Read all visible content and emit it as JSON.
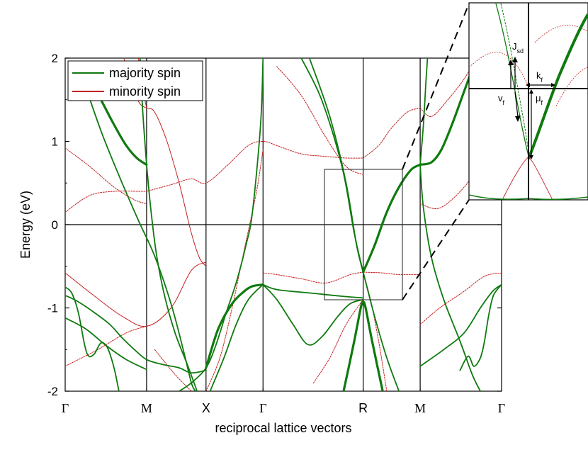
{
  "chart_data": {
    "type": "line",
    "title": "",
    "xlabel": "reciprocal lattice vectors",
    "ylabel": "Energy (eV)",
    "ylim": [
      -2,
      2
    ],
    "yticks": [
      "-2",
      "-1",
      "0",
      "1",
      "2"
    ],
    "kpoints": [
      {
        "label": "Γ",
        "pos": 0
      },
      {
        "label": "M",
        "pos": 1
      },
      {
        "label": "X",
        "pos": 1.73
      },
      {
        "label": "Γ",
        "pos": 2.43
      },
      {
        "label": "R",
        "pos": 3.66
      },
      {
        "label": "M",
        "pos": 4.36
      },
      {
        "label": "Γ",
        "pos": 5.36
      }
    ],
    "grid": false,
    "legend_position": "top-left",
    "series": [
      {
        "name": "majority spin",
        "color": "#0f7a0f",
        "bands": [
          [
            [
              0.0,
              -0.75
            ],
            [
              0.08,
              -0.82
            ],
            [
              0.16,
              -1.05
            ],
            [
              0.24,
              -1.45
            ],
            [
              0.29,
              -1.58
            ],
            [
              0.36,
              -1.55
            ],
            [
              0.44,
              -1.42
            ],
            [
              0.52,
              -1.48
            ],
            [
              0.6,
              -1.72
            ],
            [
              0.66,
              -2.0
            ]
          ],
          [
            [
              0.0,
              -0.85
            ],
            [
              0.15,
              -0.92
            ],
            [
              0.35,
              -1.05
            ],
            [
              0.55,
              -1.2
            ],
            [
              0.7,
              -1.36
            ],
            [
              0.85,
              -1.5
            ],
            [
              1.0,
              -1.62
            ],
            [
              1.2,
              -1.68
            ],
            [
              1.4,
              -1.72
            ],
            [
              1.55,
              -1.78
            ],
            [
              1.73,
              -1.75
            ]
          ],
          [
            [
              0.0,
              -1.12
            ],
            [
              0.25,
              -1.25
            ],
            [
              0.5,
              -1.45
            ],
            [
              0.75,
              -1.62
            ],
            [
              1.0,
              -1.74
            ]
          ],
          [
            [
              0.44,
              1.5
            ],
            [
              0.6,
              1.2
            ],
            [
              0.75,
              0.95
            ],
            [
              0.88,
              0.8
            ],
            [
              1.0,
              0.72
            ]
          ],
          [
            [
              1.0,
              0.72
            ],
            [
              0.96,
              1.25
            ],
            [
              0.93,
              1.75
            ],
            [
              0.92,
              2.0
            ]
          ],
          [
            [
              1.0,
              0.72
            ],
            [
              1.05,
              0.2
            ],
            [
              1.12,
              -0.35
            ],
            [
              1.22,
              -0.85
            ],
            [
              1.35,
              -1.3
            ],
            [
              1.5,
              -1.68
            ],
            [
              1.62,
              -2.0
            ]
          ],
          [
            [
              0.2,
              1.8
            ],
            [
              0.45,
              1.1
            ],
            [
              0.7,
              0.5
            ],
            [
              0.9,
              0.05
            ],
            [
              1.1,
              -0.38
            ],
            [
              1.3,
              -0.95
            ],
            [
              1.45,
              -1.5
            ],
            [
              1.55,
              -1.9
            ],
            [
              1.6,
              -2.0
            ]
          ],
          [
            [
              1.4,
              -2.0
            ],
            [
              1.55,
              -1.9
            ],
            [
              1.73,
              -1.72
            ],
            [
              1.85,
              -1.45
            ],
            [
              1.98,
              -1.05
            ],
            [
              2.1,
              -0.7
            ],
            [
              2.22,
              -0.25
            ],
            [
              2.3,
              0.15
            ],
            [
              2.4,
              1.2
            ],
            [
              2.43,
              2.0
            ]
          ],
          [
            [
              1.73,
              -1.72
            ],
            [
              1.88,
              -1.25
            ],
            [
              2.05,
              -0.95
            ],
            [
              2.2,
              -0.8
            ],
            [
              2.3,
              -0.74
            ],
            [
              2.43,
              -0.72
            ]
          ],
          [
            [
              1.78,
              -2.0
            ],
            [
              1.95,
              -1.6
            ],
            [
              2.1,
              -1.2
            ],
            [
              2.25,
              -0.9
            ],
            [
              2.43,
              -0.72
            ]
          ],
          [
            [
              2.43,
              -0.72
            ],
            [
              2.6,
              -0.78
            ],
            [
              3.0,
              -0.82
            ],
            [
              3.4,
              -0.86
            ],
            [
              3.66,
              -0.88
            ]
          ],
          [
            [
              2.43,
              -0.72
            ],
            [
              2.6,
              -0.9
            ],
            [
              2.8,
              -1.2
            ],
            [
              2.98,
              -1.44
            ],
            [
              3.15,
              -1.35
            ],
            [
              3.35,
              -1.1
            ],
            [
              3.5,
              -0.95
            ],
            [
              3.66,
              -0.9
            ]
          ],
          [
            [
              3.42,
              -2.0
            ],
            [
              3.55,
              -1.4
            ],
            [
              3.63,
              -1.0
            ],
            [
              3.66,
              -0.93
            ],
            [
              3.69,
              -1.0
            ],
            [
              3.77,
              -1.4
            ],
            [
              3.9,
              -2.0
            ]
          ],
          [
            [
              2.9,
              2.0
            ],
            [
              3.15,
              1.5
            ],
            [
              3.4,
              0.7
            ],
            [
              3.55,
              -0.1
            ],
            [
              3.66,
              -0.57
            ]
          ],
          [
            [
              3.0,
              2.0
            ],
            [
              3.25,
              1.3
            ],
            [
              3.45,
              0.5
            ],
            [
              3.58,
              -0.25
            ],
            [
              3.66,
              -0.57
            ]
          ],
          [
            [
              3.66,
              -0.57
            ],
            [
              3.8,
              -0.25
            ],
            [
              3.95,
              0.15
            ],
            [
              4.1,
              0.45
            ],
            [
              4.25,
              0.66
            ],
            [
              4.36,
              0.72
            ]
          ],
          [
            [
              4.36,
              0.72
            ],
            [
              4.5,
              0.75
            ],
            [
              4.62,
              0.9
            ],
            [
              4.75,
              1.2
            ],
            [
              4.9,
              1.6
            ],
            [
              5.05,
              2.0
            ]
          ],
          [
            [
              4.36,
              0.72
            ],
            [
              4.4,
              1.2
            ],
            [
              4.43,
              1.7
            ],
            [
              4.45,
              2.0
            ]
          ],
          [
            [
              4.36,
              0.72
            ],
            [
              4.4,
              0.2
            ],
            [
              4.5,
              -0.4
            ],
            [
              4.65,
              -0.9
            ],
            [
              4.85,
              -1.4
            ],
            [
              5.0,
              -1.8
            ],
            [
              5.1,
              -2.0
            ]
          ],
          [
            [
              3.66,
              -0.57
            ],
            [
              3.8,
              -1.1
            ],
            [
              3.95,
              -1.6
            ],
            [
              4.1,
              -2.0
            ]
          ],
          [
            [
              4.36,
              -1.7
            ],
            [
              4.65,
              -1.5
            ],
            [
              4.9,
              -1.3
            ],
            [
              5.1,
              -1.0
            ],
            [
              5.25,
              -0.8
            ],
            [
              5.36,
              -0.72
            ]
          ],
          [
            [
              5.36,
              -0.72
            ],
            [
              5.26,
              -0.85
            ],
            [
              5.2,
              -1.1
            ],
            [
              5.15,
              -1.4
            ],
            [
              5.1,
              -1.6
            ],
            [
              5.02,
              -1.7
            ],
            [
              4.95,
              -1.58
            ],
            [
              4.85,
              -1.75
            ]
          ]
        ]
      },
      {
        "name": "minority spin",
        "color": "#c42020",
        "bands": [
          [
            [
              0.72,
              2.0
            ],
            [
              0.85,
              1.6
            ],
            [
              0.92,
              1.45
            ],
            [
              1.0,
              1.4
            ],
            [
              1.1,
              1.35
            ],
            [
              1.25,
              1.0
            ],
            [
              1.4,
              0.5
            ],
            [
              1.55,
              -0.1
            ],
            [
              1.65,
              -0.4
            ],
            [
              1.73,
              -0.5
            ]
          ],
          [
            [
              1.0,
              1.4
            ],
            [
              0.96,
              1.6
            ],
            [
              0.9,
              2.0
            ]
          ],
          [
            [
              0.0,
              -0.58
            ],
            [
              0.35,
              -0.85
            ],
            [
              0.7,
              -1.1
            ],
            [
              1.0,
              -1.22
            ],
            [
              1.3,
              -1.0
            ],
            [
              1.55,
              -0.55
            ],
            [
              1.73,
              -0.45
            ]
          ],
          [
            [
              0.0,
              -1.7
            ],
            [
              0.4,
              -1.5
            ],
            [
              0.75,
              -1.3
            ],
            [
              1.0,
              -1.22
            ]
          ],
          [
            [
              0.0,
              0.92
            ],
            [
              0.3,
              0.7
            ],
            [
              0.6,
              0.45
            ],
            [
              0.85,
              0.3
            ],
            [
              1.0,
              0.25
            ]
          ],
          [
            [
              0.0,
              0.15
            ],
            [
              0.3,
              0.35
            ],
            [
              0.6,
              0.4
            ],
            [
              0.9,
              0.4
            ],
            [
              1.0,
              0.4
            ]
          ],
          [
            [
              1.0,
              0.4
            ],
            [
              1.3,
              0.48
            ],
            [
              1.55,
              0.55
            ],
            [
              1.73,
              0.5
            ],
            [
              2.0,
              0.72
            ],
            [
              2.25,
              0.95
            ],
            [
              2.43,
              1.0
            ],
            [
              2.6,
              0.95
            ],
            [
              2.9,
              0.85
            ],
            [
              3.2,
              0.82
            ],
            [
              3.45,
              0.8
            ],
            [
              3.66,
              0.8
            ]
          ],
          [
            [
              1.1,
              -1.5
            ],
            [
              1.35,
              -1.8
            ],
            [
              1.55,
              -2.0
            ]
          ],
          [
            [
              1.73,
              -2.0
            ],
            [
              1.9,
              -1.6
            ],
            [
              2.05,
              -1.0
            ],
            [
              2.2,
              -0.3
            ],
            [
              2.35,
              0.4
            ],
            [
              2.43,
              0.9
            ]
          ],
          [
            [
              2.43,
              -0.58
            ],
            [
              2.6,
              -0.6
            ],
            [
              2.9,
              -0.65
            ],
            [
              3.2,
              -0.7
            ],
            [
              3.5,
              -0.6
            ],
            [
              3.66,
              -0.57
            ]
          ],
          [
            [
              3.66,
              -0.57
            ],
            [
              3.75,
              -0.9
            ],
            [
              3.85,
              -1.4
            ],
            [
              3.95,
              -2.0
            ]
          ],
          [
            [
              3.66,
              -0.57
            ],
            [
              3.9,
              -0.58
            ],
            [
              4.1,
              -0.6
            ],
            [
              4.36,
              -0.6
            ]
          ],
          [
            [
              3.66,
              0.8
            ],
            [
              3.85,
              0.95
            ],
            [
              4.0,
              1.15
            ],
            [
              4.2,
              1.35
            ],
            [
              4.36,
              1.4
            ]
          ],
          [
            [
              4.36,
              1.4
            ],
            [
              4.5,
              1.3
            ],
            [
              4.7,
              1.5
            ],
            [
              4.9,
              1.75
            ],
            [
              5.05,
              2.0
            ]
          ],
          [
            [
              4.36,
              -1.2
            ],
            [
              4.6,
              -1.0
            ],
            [
              4.9,
              -0.8
            ],
            [
              5.15,
              -0.62
            ],
            [
              5.36,
              -0.58
            ]
          ],
          [
            [
              4.36,
              0.25
            ],
            [
              4.6,
              0.2
            ],
            [
              4.9,
              0.45
            ],
            [
              5.15,
              0.8
            ],
            [
              5.36,
              0.92
            ]
          ],
          [
            [
              2.6,
              1.9
            ],
            [
              2.9,
              1.55
            ],
            [
              3.2,
              1.05
            ],
            [
              3.45,
              0.7
            ],
            [
              3.66,
              0.6
            ]
          ],
          [
            [
              3.05,
              -1.9
            ],
            [
              3.25,
              -1.6
            ],
            [
              3.45,
              -1.2
            ],
            [
              3.66,
              -0.9
            ]
          ]
        ]
      }
    ],
    "inset": {
      "labels": [
        {
          "main": "J",
          "sub": "sd"
        },
        {
          "main": "k",
          "sub": "f"
        },
        {
          "main": "v",
          "sub": "f"
        },
        {
          "main": "μ",
          "sub": "f"
        }
      ]
    }
  }
}
